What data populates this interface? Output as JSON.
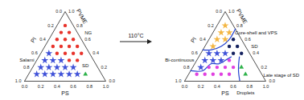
{
  "chart_data": [
    {
      "type": "ternary",
      "axes": [
        {
          "label": "PI",
          "lim": [
            0,
            1
          ],
          "ticks": [
            {
              "value": 0,
              "label": "0.0"
            },
            {
              "value": 0.2,
              "label": "0.2"
            },
            {
              "value": 0.4,
              "label": "0.4"
            },
            {
              "value": 0.6,
              "label": "0.6"
            },
            {
              "value": 0.8,
              "label": "0.8"
            },
            {
              "value": 1,
              "label": "1.0"
            }
          ]
        },
        {
          "label": "PS",
          "lim": [
            0,
            1
          ],
          "ticks": [
            {
              "value": 0,
              "label": "0.0"
            },
            {
              "value": 0.2,
              "label": "0.2"
            },
            {
              "value": 0.4,
              "label": "0.4"
            },
            {
              "value": 0.6,
              "label": "0.6"
            },
            {
              "value": 0.8,
              "label": "0.8"
            },
            {
              "value": 1,
              "label": "1.0"
            }
          ]
        },
        {
          "label": "PVME",
          "lim": [
            0,
            1
          ],
          "ticks": [
            {
              "value": 0,
              "label": "0.0"
            },
            {
              "value": 0.2,
              "label": "0.2"
            },
            {
              "value": 0.4,
              "label": "0.4"
            },
            {
              "value": 0.6,
              "label": "0.6"
            },
            {
              "value": 0.8,
              "label": "0.8"
            },
            {
              "value": 1,
              "label": "1.0"
            }
          ]
        }
      ],
      "series": [
        {
          "name": "NG",
          "color": "#e8332b",
          "marker": "circle",
          "points": [
            [
              0.1,
              0.1,
              0.8
            ],
            [
              0.2,
              0.1,
              0.7
            ],
            [
              0.1,
              0.2,
              0.7
            ],
            [
              0.3,
              0.1,
              0.6
            ],
            [
              0.2,
              0.2,
              0.6
            ],
            [
              0.1,
              0.3,
              0.6
            ],
            [
              0.4,
              0.1,
              0.5
            ],
            [
              0.3,
              0.2,
              0.5
            ],
            [
              0.2,
              0.3,
              0.5
            ],
            [
              0.1,
              0.4,
              0.5
            ],
            [
              0.4,
              0.2,
              0.4
            ],
            [
              0.3,
              0.3,
              0.4
            ],
            [
              0.2,
              0.4,
              0.4
            ],
            [
              0.1,
              0.5,
              0.4
            ],
            [
              0.3,
              0.4,
              0.3
            ],
            [
              0.2,
              0.5,
              0.3
            ]
          ]
        },
        {
          "name": "Salami",
          "color": "#3f51d8",
          "marker": "star",
          "points": [
            [
              0.5,
              0.1,
              0.4
            ],
            [
              0.6,
              0.1,
              0.3
            ],
            [
              0.5,
              0.2,
              0.3
            ],
            [
              0.4,
              0.3,
              0.3
            ],
            [
              0.7,
              0.1,
              0.2
            ],
            [
              0.6,
              0.2,
              0.2
            ],
            [
              0.5,
              0.3,
              0.2
            ],
            [
              0.4,
              0.4,
              0.2
            ],
            [
              0.3,
              0.5,
              0.2
            ],
            [
              0.8,
              0.1,
              0.1
            ],
            [
              0.7,
              0.2,
              0.1
            ],
            [
              0.6,
              0.3,
              0.1
            ],
            [
              0.5,
              0.4,
              0.1
            ],
            [
              0.4,
              0.5,
              0.1
            ],
            [
              0.3,
              0.6,
              0.1
            ]
          ]
        },
        {
          "name": "SD",
          "color": "#2eb24a",
          "marker": "triangle",
          "points": [
            [
              0.2,
              0.7,
              0.1
            ]
          ]
        }
      ]
    },
    {
      "type": "ternary",
      "axes": [
        {
          "label": "PI",
          "lim": [
            0,
            1
          ],
          "ticks": [
            {
              "value": 0,
              "label": "0.0"
            },
            {
              "value": 0.2,
              "label": "0.2"
            },
            {
              "value": 0.4,
              "label": "0.4"
            },
            {
              "value": 0.6,
              "label": "0.6"
            },
            {
              "value": 0.8,
              "label": "0.8"
            },
            {
              "value": 1,
              "label": "1.0"
            }
          ]
        },
        {
          "label": "PS",
          "lim": [
            0,
            1
          ],
          "ticks": [
            {
              "value": 0,
              "label": "0.0"
            },
            {
              "value": 0.2,
              "label": "0.2"
            },
            {
              "value": 0.4,
              "label": "0.4"
            },
            {
              "value": 0.6,
              "label": "0.6"
            },
            {
              "value": 0.8,
              "label": "0.8"
            },
            {
              "value": 1,
              "label": "1.0"
            }
          ]
        },
        {
          "label": "PVME",
          "lim": [
            0,
            1
          ],
          "ticks": [
            {
              "value": 0,
              "label": "0.0"
            },
            {
              "value": 0.2,
              "label": "0.2"
            },
            {
              "value": 0.4,
              "label": "0.4"
            },
            {
              "value": 0.6,
              "label": "0.6"
            },
            {
              "value": 0.8,
              "label": "0.8"
            },
            {
              "value": 1,
              "label": "1.0"
            }
          ]
        }
      ],
      "series": [
        {
          "name": "Core-shell and VPS",
          "color": "#f4b642",
          "marker": "star",
          "points": [
            [
              0.1,
              0.1,
              0.8
            ],
            [
              0.2,
              0.1,
              0.7
            ],
            [
              0.1,
              0.2,
              0.7
            ],
            [
              0.3,
              0.1,
              0.6
            ],
            [
              0.2,
              0.2,
              0.6
            ],
            [
              0.4,
              0.1,
              0.5
            ]
          ]
        },
        {
          "name": "SD",
          "color": "#14215e",
          "marker": "circle",
          "points": [
            [
              0.1,
              0.3,
              0.6
            ],
            [
              0.2,
              0.3,
              0.5
            ],
            [
              0.1,
              0.4,
              0.5
            ],
            [
              0.2,
              0.4,
              0.4
            ],
            [
              0.1,
              0.5,
              0.4
            ]
          ]
        },
        {
          "name": "Bi-continuous",
          "color": "#3f51d8",
          "marker": "star",
          "points": [
            [
              0.5,
              0.1,
              0.4
            ],
            [
              0.4,
              0.2,
              0.4
            ],
            [
              0.3,
              0.3,
              0.4
            ],
            [
              0.6,
              0.1,
              0.3
            ],
            [
              0.5,
              0.2,
              0.3
            ],
            [
              0.4,
              0.3,
              0.3
            ],
            [
              0.7,
              0.1,
              0.2
            ]
          ]
        },
        {
          "name": "Droplets",
          "color": "#e040e0",
          "marker": "circle",
          "points": [
            [
              0.3,
              0.4,
              0.3
            ],
            [
              0.6,
              0.2,
              0.2
            ],
            [
              0.5,
              0.3,
              0.2
            ],
            [
              0.4,
              0.4,
              0.2
            ],
            [
              0.3,
              0.5,
              0.2
            ],
            [
              0.8,
              0.1,
              0.1
            ],
            [
              0.7,
              0.2,
              0.1
            ],
            [
              0.6,
              0.3,
              0.1
            ],
            [
              0.5,
              0.4,
              0.1
            ],
            [
              0.4,
              0.5,
              0.1
            ]
          ]
        },
        {
          "name": "Late stage of SD",
          "color": "#2eb24a",
          "marker": "triangle",
          "points": [
            [
              0.2,
              0.6,
              0.2
            ],
            [
              0.2,
              0.7,
              0.1
            ]
          ]
        }
      ],
      "boundaries": [
        {
          "color": "#2040d0",
          "points": [
            [
              0.55,
              0,
              0.45
            ],
            [
              0.45,
              0.1,
              0.45
            ],
            [
              0.3,
              0.2,
              0.5
            ],
            [
              0.15,
              0.25,
              0.6
            ],
            [
              0,
              0.25,
              0.75
            ]
          ]
        },
        {
          "color": "#2040d0",
          "points": [
            [
              0.85,
              0,
              0.15
            ],
            [
              0.7,
              0.15,
              0.15
            ],
            [
              0.55,
              0.2,
              0.25
            ],
            [
              0.45,
              0.3,
              0.25
            ],
            [
              0.35,
              0.35,
              0.3
            ],
            [
              0.25,
              0.4,
              0.35
            ]
          ]
        },
        {
          "color": "#2040d0",
          "points": [
            [
              0.32,
              0.68,
              0
            ],
            [
              0.27,
              0.6,
              0.13
            ],
            [
              0.22,
              0.55,
              0.23
            ],
            [
              0.15,
              0.5,
              0.35
            ]
          ]
        }
      ]
    }
  ],
  "transition": {
    "label": "110°C"
  }
}
